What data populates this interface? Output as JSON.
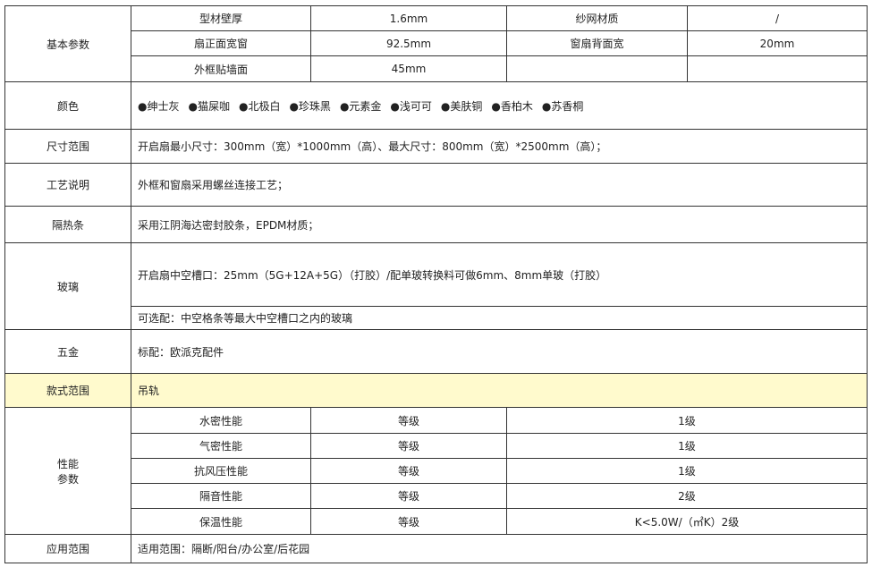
{
  "basic": {
    "label": "基本参数",
    "rows": [
      [
        "型材壁厚",
        "1.6mm",
        "纱网材质",
        "/"
      ],
      [
        "扇正面宽窗",
        "92.5mm",
        "窗扇背面宽",
        "20mm"
      ],
      [
        "外框贴墙面",
        "45mm",
        "",
        ""
      ]
    ]
  },
  "color": {
    "label": "颜色",
    "options": [
      "●绅士灰",
      "●猫屎咖",
      "●北极白",
      "●珍珠黑",
      "●元素金",
      "●浅可可",
      "●美肤铜",
      "●香柏木",
      "●苏香桐"
    ]
  },
  "size": {
    "label": "尺寸范围",
    "text": "开启扇最小尺寸：300mm（宽）*1000mm（高）、最大尺寸：800mm（宽）*2500mm（高）；"
  },
  "process": {
    "label": "工艺说明",
    "text": "外框和窗扇采用螺丝连接工艺；"
  },
  "insulation": {
    "label": "隔热条",
    "text": "采用江阴海达密封胶条，EPDM材质；"
  },
  "glass": {
    "label": "玻璃",
    "standard": "开启扇中空槽口：25mm（5G+12A+5G）（打胶）/配单玻转换料可做6mm、8mm单玻（打胶）",
    "optional": "可选配：中空格条等最大中空槽口之内的玻璃"
  },
  "hardware": {
    "label": "五金",
    "text": "标配：欧派克配件"
  },
  "style": {
    "label": "款式范围",
    "text": "吊轨",
    "highlight_color": "#fffacd"
  },
  "performance": {
    "label_line1": "性能",
    "label_line2": "参数",
    "rows": [
      [
        "水密性能",
        "等级",
        "1级"
      ],
      [
        "气密性能",
        "等级",
        "1级"
      ],
      [
        "抗风压性能",
        "等级",
        "1级"
      ],
      [
        "隔音性能",
        "等级",
        "2级"
      ],
      [
        "保温性能",
        "等级",
        "K<5.0W/（㎡K）2级"
      ]
    ]
  },
  "application": {
    "label": "应用范围",
    "text": "适用范围：隔断/阳台/办公室/后花园"
  }
}
